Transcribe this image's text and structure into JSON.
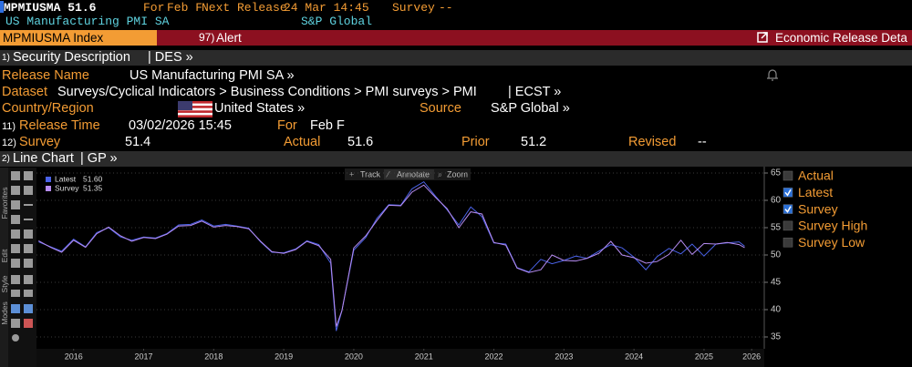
{
  "header": {
    "ticker": "MPMIUSMA",
    "last": "51.6",
    "for_label": "For",
    "for_value": "Feb F",
    "next_label": "Next Release",
    "next_value": "24 Mar 14:45",
    "survey_label": "Survey",
    "survey_value": "--",
    "name": "US Manufacturing PMI SA",
    "source": "S&P Global"
  },
  "toolbar": {
    "security": "MPMIUSMA Index",
    "alert_num": "97)",
    "alert": "Alert",
    "release_link": "Economic Release Deta"
  },
  "section1": {
    "num": "1)",
    "title": "Security Description",
    "code": "| DES »"
  },
  "description": {
    "release_name_label": "Release Name",
    "release_name": "US Manufacturing PMI SA »",
    "dataset_label": "Dataset",
    "dataset": "Surveys/Cyclical Indicators > Business Conditions > PMI surveys > PMI",
    "dataset_code": "| ECST »",
    "country_label": "Country/Region",
    "country": "United States »",
    "source_label": "Source",
    "source": "S&P Global »"
  },
  "release_row": {
    "num": "11)",
    "label": "Release Time",
    "value": "03/02/2026 15:45",
    "for_label": "For",
    "for_value": "Feb F"
  },
  "survey_row": {
    "num": "12)",
    "label": "Survey",
    "value": "51.4",
    "actual_label": "Actual",
    "actual": "51.6",
    "prior_label": "Prior",
    "prior": "51.2",
    "revised_label": "Revised",
    "revised": "--"
  },
  "section2": {
    "num": "2)",
    "title": "Line Chart",
    "code": "| GP »"
  },
  "chart_tools": [
    "Track",
    "Annotate",
    "Zoom"
  ],
  "side_tabs": [
    "Favorites",
    "Edit",
    "Style",
    "Modes"
  ],
  "chart_options": [
    {
      "label": "Actual",
      "checked": false
    },
    {
      "label": "Latest",
      "checked": true
    },
    {
      "label": "Survey",
      "checked": true
    },
    {
      "label": "Survey High",
      "checked": false
    },
    {
      "label": "Survey Low",
      "checked": false
    }
  ],
  "chart_data": {
    "type": "line",
    "x": [
      2016.0,
      2016.17,
      2016.33,
      2016.5,
      2016.67,
      2016.83,
      2017.0,
      2017.17,
      2017.33,
      2017.5,
      2017.67,
      2017.83,
      2018.0,
      2018.17,
      2018.33,
      2018.5,
      2018.67,
      2018.83,
      2019.0,
      2019.17,
      2019.33,
      2019.5,
      2019.67,
      2019.83,
      2020.0,
      2020.17,
      2020.25,
      2020.33,
      2020.5,
      2020.67,
      2020.83,
      2021.0,
      2021.17,
      2021.33,
      2021.5,
      2021.67,
      2021.83,
      2022.0,
      2022.17,
      2022.33,
      2022.5,
      2022.67,
      2022.83,
      2023.0,
      2023.17,
      2023.33,
      2023.5,
      2023.67,
      2023.83,
      2024.0,
      2024.17,
      2024.33,
      2024.5,
      2024.67,
      2024.83,
      2025.0,
      2025.17,
      2025.33,
      2025.5,
      2025.67,
      2025.83,
      2026.0,
      2026.08
    ],
    "series": [
      {
        "name": "Latest",
        "legend_value": "51.60",
        "color": "#4a62e8",
        "values": [
          52.4,
          51.5,
          50.7,
          52.9,
          51.5,
          54.1,
          55.0,
          53.3,
          52.7,
          53.3,
          53.1,
          53.9,
          55.5,
          55.6,
          56.4,
          55.3,
          55.6,
          55.3,
          54.9,
          52.4,
          50.5,
          50.4,
          51.1,
          52.6,
          51.9,
          48.5,
          36.1,
          39.8,
          50.9,
          53.2,
          56.7,
          59.2,
          59.1,
          62.1,
          63.4,
          60.7,
          58.3,
          55.5,
          58.8,
          57.0,
          52.2,
          52.0,
          47.7,
          46.9,
          49.2,
          48.4,
          49.0,
          49.8,
          49.4,
          50.7,
          51.9,
          51.3,
          49.6,
          47.3,
          49.7,
          51.2,
          50.2,
          52.0,
          49.8,
          52.0,
          52.2,
          52.4,
          51.6
        ]
      },
      {
        "name": "Survey",
        "legend_value": "51.35",
        "color": "#b68cf2",
        "values": [
          52.6,
          51.4,
          50.5,
          52.7,
          51.4,
          53.9,
          55.1,
          53.5,
          52.5,
          53.2,
          53.0,
          53.8,
          55.3,
          55.4,
          56.2,
          55.1,
          55.4,
          55.2,
          54.8,
          52.5,
          50.6,
          50.3,
          51.0,
          52.5,
          51.7,
          49.2,
          36.9,
          39.8,
          51.3,
          53.5,
          56.3,
          59.1,
          59.0,
          61.5,
          62.8,
          60.5,
          58.5,
          55.0,
          57.9,
          57.5,
          52.3,
          51.8,
          47.6,
          46.8,
          47.3,
          50.0,
          49.0,
          48.9,
          49.4,
          50.3,
          52.5,
          50.0,
          49.5,
          48.5,
          48.8,
          50.1,
          52.7,
          50.1,
          52.1,
          52.0,
          52.3,
          51.9,
          51.35
        ]
      }
    ],
    "xlim": [
      2015.97,
      2026.36
    ],
    "xticks": [
      {
        "value": 2016.5,
        "label": "2016"
      },
      {
        "value": 2017.5,
        "label": "2017"
      },
      {
        "value": 2018.5,
        "label": "2018"
      },
      {
        "value": 2019.5,
        "label": "2019"
      },
      {
        "value": 2020.5,
        "label": "2020"
      },
      {
        "value": 2021.5,
        "label": "2021"
      },
      {
        "value": 2022.5,
        "label": "2022"
      },
      {
        "value": 2023.5,
        "label": "2023"
      },
      {
        "value": 2024.5,
        "label": "2024"
      },
      {
        "value": 2025.5,
        "label": "2025"
      },
      {
        "value": 2026.18,
        "label": "2026"
      }
    ],
    "ylim": [
      34,
      66
    ],
    "yticks": [
      35,
      40,
      45,
      50,
      55,
      60,
      65
    ],
    "grid": true
  }
}
